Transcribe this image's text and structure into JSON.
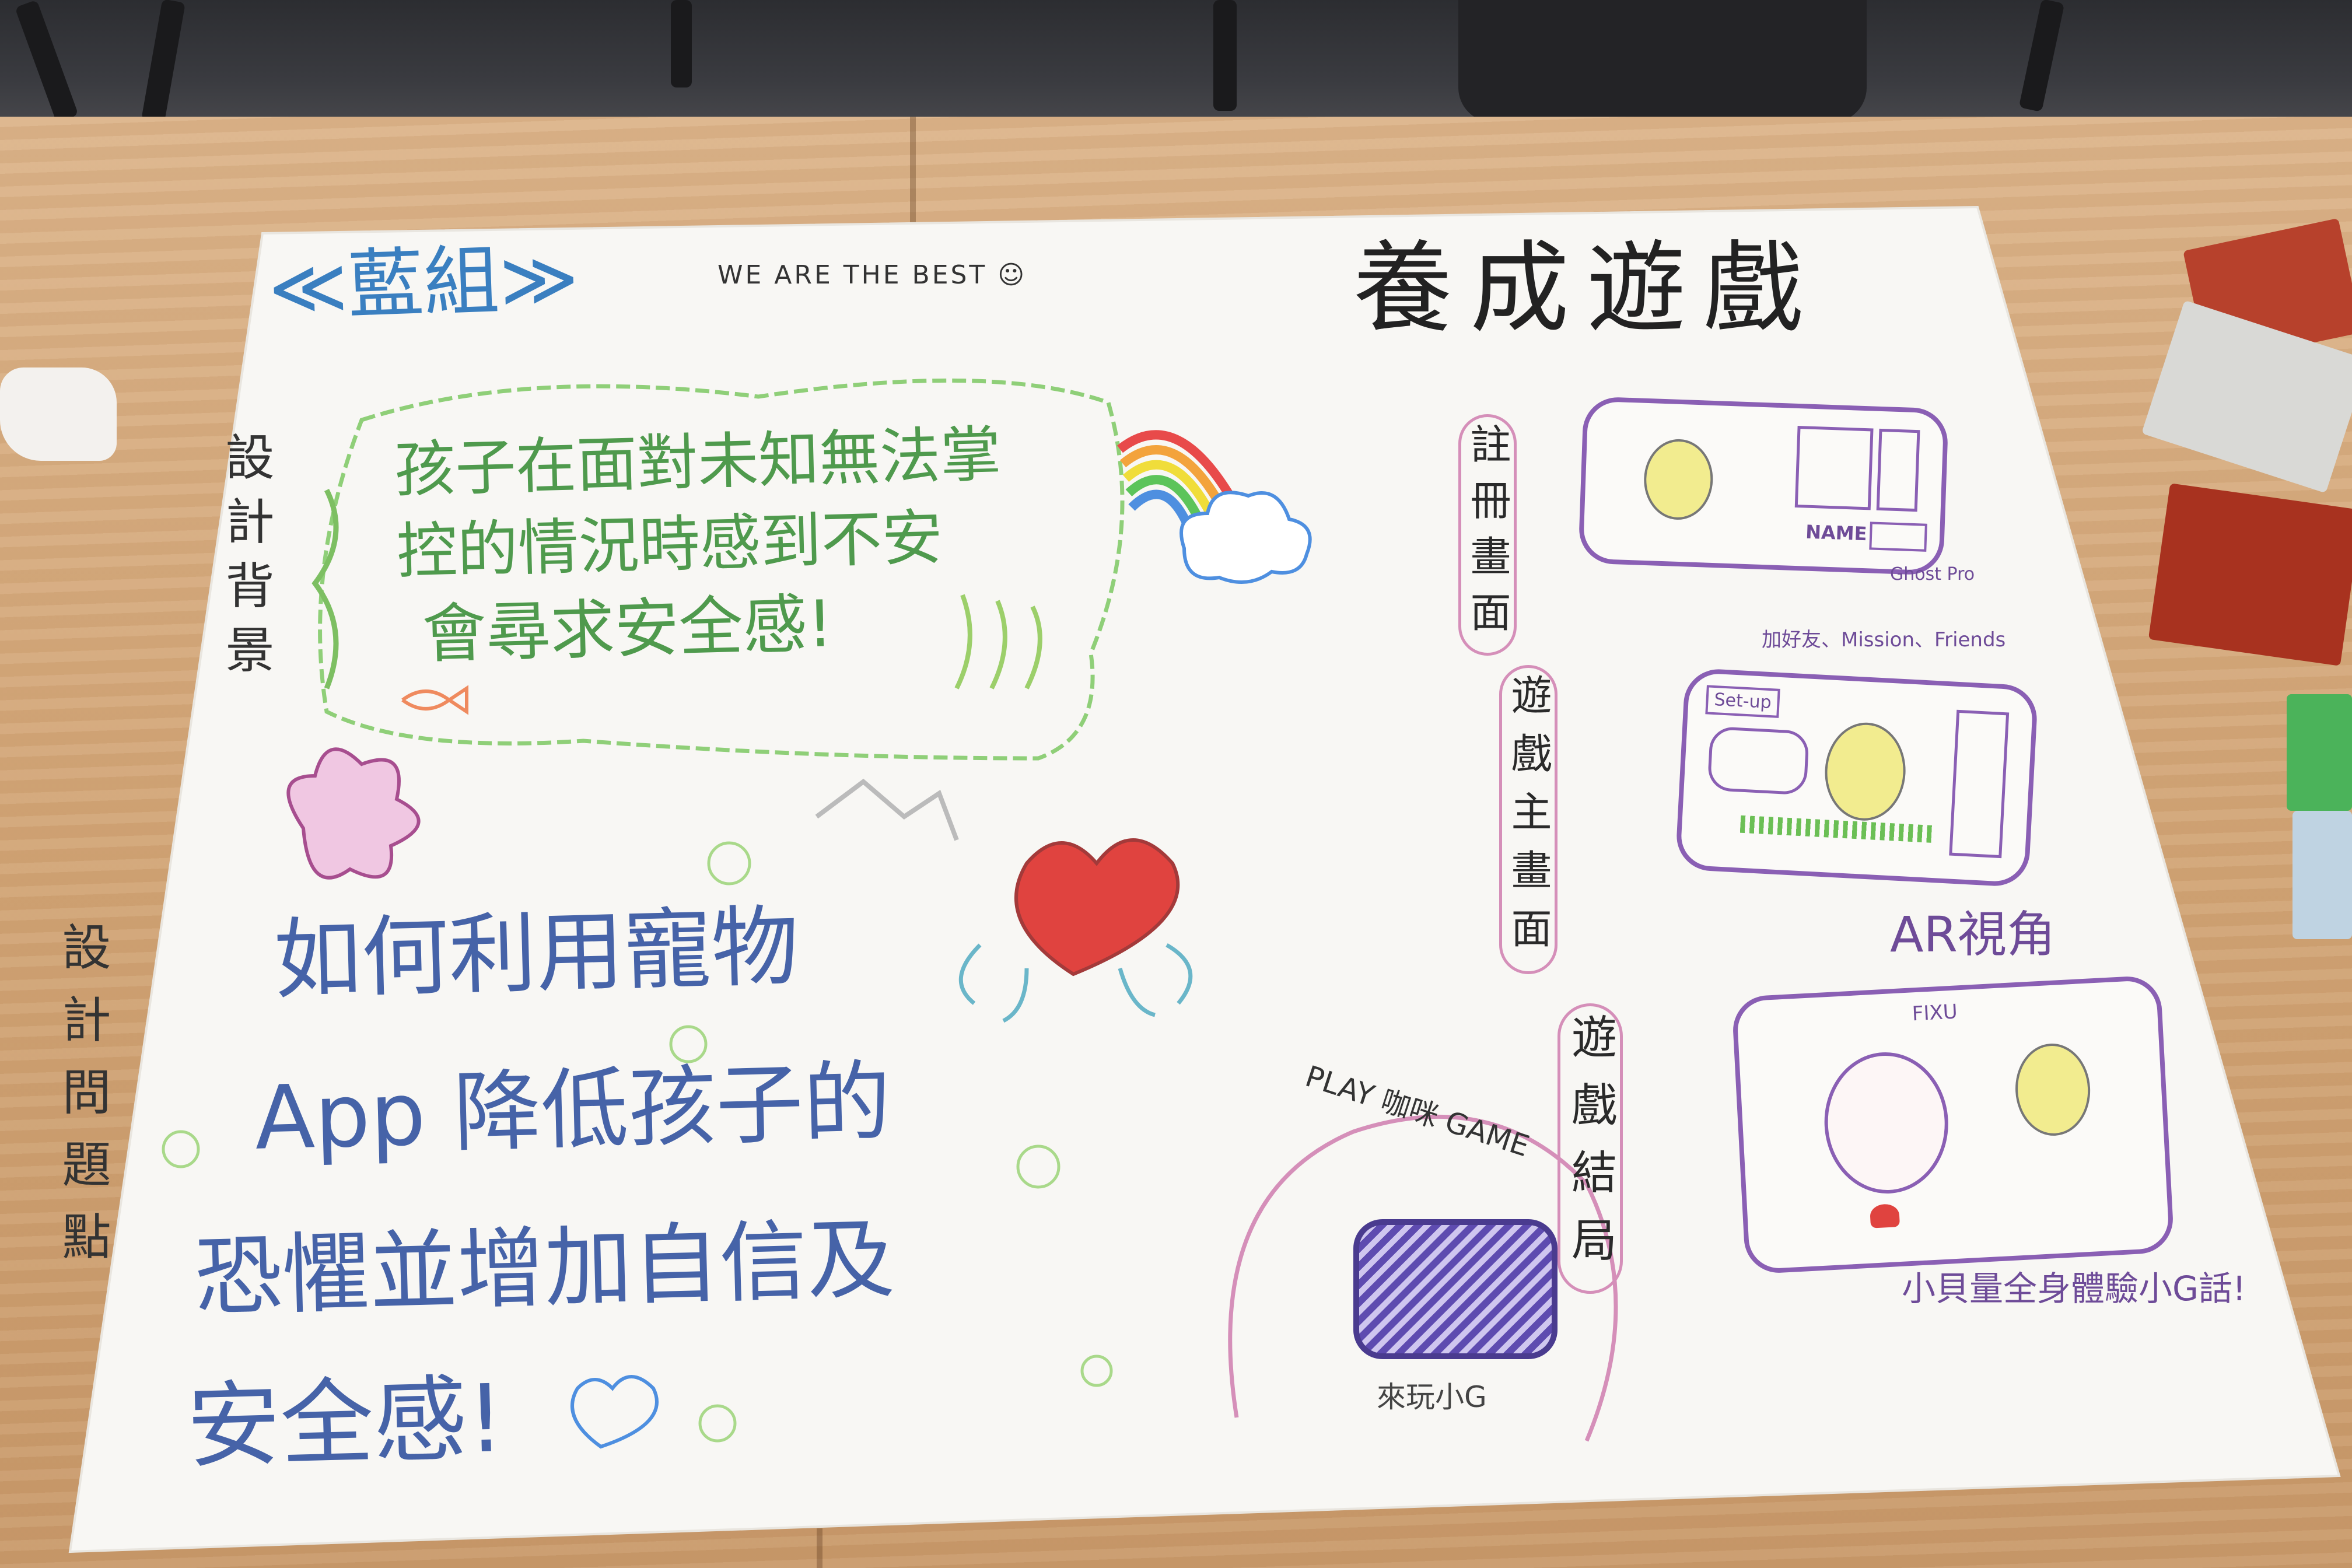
{
  "group_title": "≪藍組≫",
  "motto": "WE ARE THE BEST ☺",
  "game_title": "養成遊戲",
  "background_label": "設計背景",
  "background_text_lines": [
    "孩子在面對未知無法掌",
    "控的情況時感到不安",
    "會尋求安全感!"
  ],
  "problem_label": "設計問題點",
  "problem_text_lines": [
    "如何利用寵物",
    "App 降低孩子的",
    "恐懼並增加自信及",
    "安全感!"
  ],
  "screen_labels": {
    "register": "註冊畫面",
    "main": "遊戲主畫面",
    "direction": "遊戲結局"
  },
  "phone1": {
    "name_label": "NAME",
    "caption": "Ghost Pro"
  },
  "phone2": {
    "header": "加好友、Mission、Friends",
    "button": "Set-up"
  },
  "ar_title": "AR視角",
  "phone3": {
    "caption": "小貝量全身體驗小G話!",
    "top_label": "FIXU"
  },
  "play_title": "PLAY 咖咪 GAME",
  "play_caption": "來玩小G",
  "colors": {
    "background_ink": "#4f9a4d",
    "problem_ink": "#4663a8",
    "phone_ink": "#8a5fb4",
    "circle_ink": "#d58fb9"
  }
}
